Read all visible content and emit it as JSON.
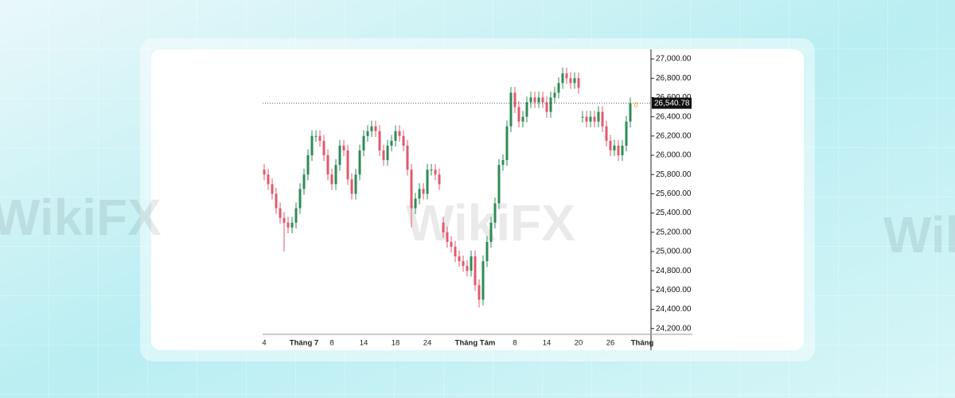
{
  "chart_data": {
    "type": "candlestick",
    "watermark": "WikiFX",
    "annotation": "0",
    "up_color": "#2e8b57",
    "down_color": "#e05a6e",
    "categories": [
      "4",
      null,
      null,
      null,
      null,
      null,
      null,
      null,
      null,
      null,
      "Tháng 7",
      null,
      null,
      null,
      null,
      null,
      null,
      "8",
      null,
      null,
      null,
      null,
      null,
      null,
      null,
      "14",
      null,
      null,
      null,
      null,
      null,
      null,
      null,
      "18",
      null,
      null,
      null,
      null,
      null,
      null,
      null,
      "24",
      null,
      null,
      null,
      null,
      null,
      null,
      null,
      null,
      null,
      null,
      null,
      "Tháng Tám",
      null,
      null,
      null,
      null,
      null,
      null,
      null,
      null,
      null,
      "8",
      null,
      null,
      null,
      null,
      null,
      null,
      null,
      "14",
      null,
      null,
      null,
      null,
      null,
      null,
      null,
      "20",
      null,
      null,
      null,
      null,
      null,
      null,
      null,
      "26",
      null,
      null,
      null,
      null,
      null,
      null,
      null,
      "Tháng"
    ],
    "open": [
      25850,
      25800,
      25700,
      25600,
      25450,
      25350,
      25300,
      25250,
      25300,
      25450,
      25650,
      25800,
      26000,
      26200,
      26200,
      26150,
      26000,
      25800,
      25700,
      25900,
      26100,
      26050,
      25750,
      25600,
      25800,
      26050,
      26200,
      26250,
      26300,
      26250,
      26050,
      25950,
      26100,
      26150,
      26250,
      26200,
      26100,
      25850,
      25450,
      25550,
      25650,
      25600,
      25850,
      25850,
      25800,
      25300,
      25200,
      25100,
      25050,
      24950,
      24900,
      24850,
      24800,
      24950,
      24650,
      24500,
      24900,
      25100,
      25300,
      25500,
      25900,
      25950,
      26300,
      26650,
      26500,
      26350,
      26400,
      26550,
      26600,
      26550,
      26600,
      26550,
      26450,
      26600,
      26650,
      26750,
      26850,
      26800,
      26750,
      26800,
      26400,
      26400,
      26350,
      26400,
      26350,
      26450,
      26300,
      26150,
      26050,
      26100,
      26000,
      26100,
      26350,
      null,
      null,
      null
    ],
    "high": [
      25910,
      25860,
      25760,
      25660,
      25510,
      25410,
      25360,
      25360,
      25510,
      25710,
      25860,
      26060,
      26260,
      26260,
      26260,
      26210,
      26060,
      25860,
      25960,
      26160,
      26160,
      26110,
      25810,
      25860,
      26110,
      26260,
      26310,
      26360,
      26360,
      26310,
      26110,
      26160,
      26210,
      26310,
      26310,
      26260,
      26160,
      25910,
      25610,
      25710,
      25710,
      25910,
      25910,
      25910,
      25860,
      25360,
      25260,
      25160,
      25110,
      25010,
      24960,
      24910,
      25010,
      25010,
      24710,
      24960,
      25160,
      25360,
      25560,
      25960,
      26010,
      26360,
      26710,
      26710,
      26560,
      26460,
      26610,
      26660,
      26660,
      26660,
      26660,
      26610,
      26660,
      26710,
      26810,
      26910,
      26910,
      26860,
      26860,
      26860,
      26460,
      26460,
      26460,
      26460,
      26510,
      26510,
      26360,
      26210,
      26160,
      26160,
      26160,
      26410,
      26600,
      null,
      null,
      null
    ],
    "low": [
      25740,
      25640,
      25540,
      25390,
      25290,
      25000,
      25190,
      25190,
      25240,
      25390,
      25590,
      25740,
      25940,
      26140,
      26090,
      25940,
      25740,
      25640,
      25640,
      25840,
      25990,
      25690,
      25540,
      25540,
      25740,
      25990,
      26140,
      26190,
      26190,
      25990,
      25890,
      25890,
      26040,
      26090,
      26140,
      26040,
      25790,
      25250,
      25390,
      25490,
      25540,
      25540,
      25790,
      25740,
      25640,
      25140,
      25040,
      24990,
      24890,
      24840,
      24790,
      24740,
      24740,
      24590,
      24420,
      24440,
      24840,
      25040,
      25240,
      25440,
      25840,
      25890,
      26240,
      26440,
      26290,
      26290,
      26340,
      26490,
      26490,
      26490,
      26490,
      26390,
      26390,
      26540,
      26590,
      26690,
      26740,
      26690,
      26690,
      26640,
      26340,
      26290,
      26290,
      26290,
      26290,
      26240,
      26090,
      25990,
      25990,
      25940,
      25940,
      26040,
      26290,
      null,
      null,
      null
    ],
    "close": [
      25800,
      25700,
      25600,
      25450,
      25350,
      25300,
      25250,
      25300,
      25450,
      25650,
      25800,
      26000,
      26200,
      26200,
      26150,
      26000,
      25800,
      25700,
      25900,
      26100,
      26050,
      25750,
      25600,
      25800,
      26050,
      26200,
      26250,
      26300,
      26250,
      26050,
      25950,
      26100,
      26150,
      26250,
      26200,
      26100,
      25850,
      25450,
      25550,
      25650,
      25600,
      25850,
      25850,
      25800,
      25700,
      25200,
      25100,
      25050,
      24950,
      24900,
      24850,
      24800,
      24950,
      24650,
      24500,
      24900,
      25100,
      25300,
      25500,
      25900,
      25950,
      26300,
      26650,
      26500,
      26350,
      26400,
      26550,
      26600,
      26550,
      26600,
      26550,
      26450,
      26600,
      26650,
      26750,
      26850,
      26800,
      26750,
      26800,
      26700,
      26400,
      26350,
      26400,
      26350,
      26450,
      26300,
      26150,
      26050,
      26100,
      26000,
      26100,
      26350,
      26540.78,
      null,
      null,
      null
    ],
    "last_price": {
      "value": 26540.78,
      "label": "26,540.78"
    },
    "ylim": [
      24140,
      27100
    ],
    "yticks": [
      {
        "value": 24200,
        "label": "24,200.00"
      },
      {
        "value": 24400,
        "label": "24,400.00"
      },
      {
        "value": 24600,
        "label": "24,600.00"
      },
      {
        "value": 24800,
        "label": "24,800.00"
      },
      {
        "value": 25000,
        "label": "25,000.00"
      },
      {
        "value": 25200,
        "label": "25,200.00"
      },
      {
        "value": 25400,
        "label": "25,400.00"
      },
      {
        "value": 25600,
        "label": "25,600.00"
      },
      {
        "value": 25800,
        "label": "25,800.00"
      },
      {
        "value": 26000,
        "label": "26,000.00"
      },
      {
        "value": 26200,
        "label": "26,200.00"
      },
      {
        "value": 26400,
        "label": "26,400.00"
      },
      {
        "value": 26600,
        "label": "26,600.00"
      },
      {
        "value": 26800,
        "label": "26,800.00"
      },
      {
        "value": 27000,
        "label": "27,000.00"
      }
    ]
  }
}
